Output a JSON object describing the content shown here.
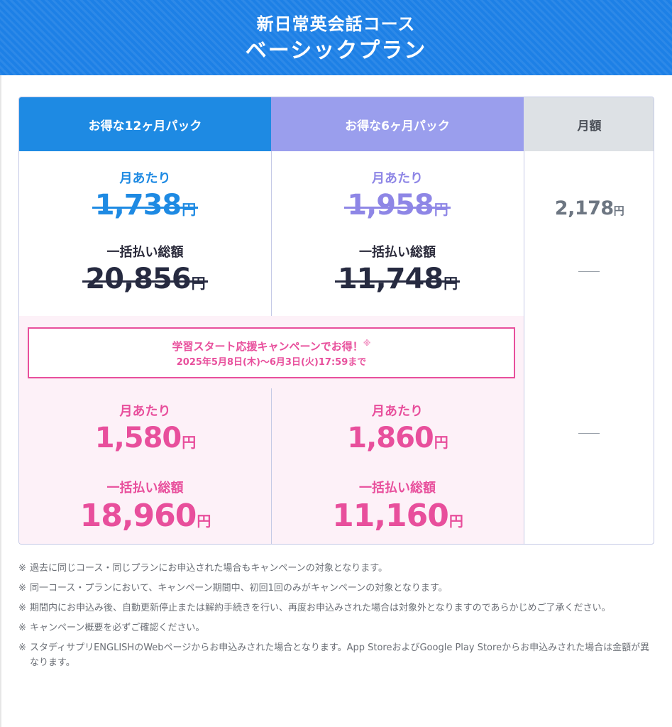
{
  "header": {
    "course": "新日常英会話コース",
    "plan": "ベーシックプラン"
  },
  "table": {
    "columns": [
      {
        "label": "お得な12ヶ月パック"
      },
      {
        "label": "お得な6ヶ月パック"
      },
      {
        "label": "月額"
      }
    ],
    "regular": [
      {
        "per_month_label": "月あたり",
        "per_month_price": "1,738",
        "total_label": "一括払い総額",
        "total_price": "20,856",
        "yen": "円"
      },
      {
        "per_month_label": "月あたり",
        "per_month_price": "1,958",
        "total_label": "一括払い総額",
        "total_price": "11,748",
        "yen": "円"
      }
    ],
    "monthly": {
      "price": "2,178",
      "yen": "円",
      "dash_1": "—",
      "dash_2": "—"
    },
    "campaign": {
      "title": "学習スタート応援キャンペーンでお得！",
      "mark": "※",
      "period": "2025年5月8日(木)〜6月3日(火)17:59まで"
    },
    "campaign_prices": [
      {
        "per_month_label": "月あたり",
        "per_month_price": "1,580",
        "total_label": "一括払い総額",
        "total_price": "18,960",
        "yen": "円"
      },
      {
        "per_month_label": "月あたり",
        "per_month_price": "1,860",
        "total_label": "一括払い総額",
        "total_price": "11,160",
        "yen": "円"
      }
    ]
  },
  "colors": {
    "header_blue": "#1d80e6",
    "col12_blue": "#1e8ae3",
    "col6_purple": "#9a9eed",
    "campaign_pink": "#e84f9c",
    "monthly_gray": "#dde1e5"
  },
  "notes": [
    {
      "mark": "※",
      "text": "過去に同じコース・同じプランにお申込された場合もキャンペーンの対象となります。"
    },
    {
      "mark": "※",
      "text": "同一コース・プランにおいて、キャンペーン期間中、初回1回のみがキャンペーンの対象となります。"
    },
    {
      "mark": "※",
      "text": "期間内にお申込み後、自動更新停止または解約手続きを行い、再度お申込みされた場合は対象外となりますのであらかじめご了承ください。"
    },
    {
      "mark": "※",
      "text": "キャンペーン概要を必ずご確認ください。"
    },
    {
      "mark": "※",
      "text": "スタディサプリENGLISHのWebページからお申込みされた場合となります。App StoreおよびGoogle Play Storeからお申込みされた場合は金額が異なります。"
    }
  ]
}
